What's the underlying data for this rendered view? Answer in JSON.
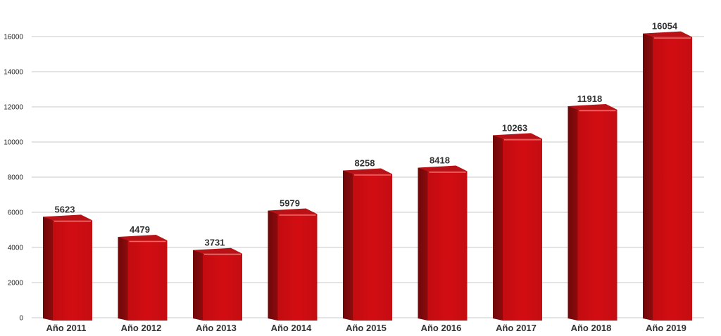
{
  "chart_data": {
    "type": "bar",
    "title": "",
    "xlabel": "",
    "ylabel": "",
    "categories": [
      "Año 2011",
      "Año 2012",
      "Año 2013",
      "Año 2014",
      "Año 2015",
      "Año 2016",
      "Año 2017",
      "Año 2018",
      "Año 2019"
    ],
    "values": [
      5623,
      4479,
      3731,
      5979,
      8258,
      8418,
      10263,
      11918,
      16054
    ],
    "value_labels": [
      "5623",
      "4479",
      "3731",
      "5979",
      "8258",
      "8418",
      "10263",
      "11918",
      "16054"
    ],
    "ylim": [
      0,
      16000
    ],
    "yticks": [
      0,
      2000,
      4000,
      6000,
      8000,
      10000,
      12000,
      14000,
      16000
    ],
    "ytick_labels": [
      "0",
      "2000",
      "4000",
      "6000",
      "8000",
      "10000",
      "12000",
      "14000",
      "16000"
    ],
    "grid": true,
    "colors": {
      "bar_front": "#d20d12",
      "bar_side": "#8c0b0d",
      "bar_top": "#b81216",
      "bar_highlight": "#f06a6a",
      "grid": "#c8c8c8",
      "axis_text": "#222222"
    }
  }
}
